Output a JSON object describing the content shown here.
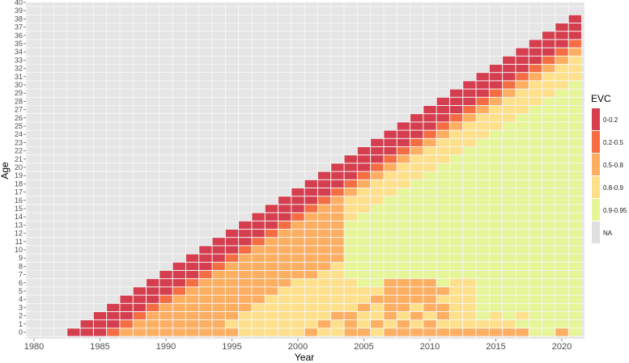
{
  "chart_data": {
    "type": "heatmap",
    "title": "",
    "xlabel": "Year",
    "ylabel": "Age",
    "x_range": [
      1980,
      2021
    ],
    "y_range": [
      0,
      40
    ],
    "x_ticks": [
      1980,
      1985,
      1990,
      1995,
      2000,
      2005,
      2010,
      2015,
      2020
    ],
    "y_ticks": [
      0,
      1,
      2,
      3,
      4,
      5,
      6,
      7,
      8,
      9,
      10,
      11,
      12,
      13,
      14,
      15,
      16,
      17,
      18,
      19,
      20,
      21,
      22,
      23,
      24,
      25,
      26,
      27,
      28,
      29,
      30,
      31,
      32,
      33,
      34,
      35,
      36,
      37,
      38,
      39,
      40
    ],
    "grid": true,
    "background_color": "#e5e5e5",
    "categories": [
      "0-0.2",
      "0.2-0.5",
      "0.5-0.8",
      "0.8-0.9",
      "0.9-0.95",
      "NA"
    ],
    "colors": [
      "#d53e4f",
      "#f46d43",
      "#fdae61",
      "#fee08b",
      "#e6f598",
      "#e0e0e0"
    ],
    "cell_rule": "value[year][age] exists for 1983 <= year <= 2021 and age <= year - 1983; category index = row value of the age band below",
    "cells_by_year": {
      "1983": [
        0
      ],
      "1984": [
        0,
        0
      ],
      "1985": [
        0,
        0,
        0
      ],
      "1986": [
        1,
        0,
        0,
        0
      ],
      "1987": [
        2,
        1,
        0,
        0,
        0
      ],
      "1988": [
        2,
        2,
        1,
        0,
        0,
        0
      ],
      "1989": [
        2,
        2,
        2,
        1,
        0,
        0,
        0
      ],
      "1990": [
        2,
        2,
        2,
        2,
        1,
        0,
        0,
        0
      ],
      "1991": [
        2,
        2,
        2,
        2,
        2,
        1,
        0,
        0,
        0
      ],
      "1992": [
        2,
        2,
        2,
        2,
        2,
        2,
        1,
        0,
        0,
        0
      ],
      "1993": [
        2,
        2,
        2,
        2,
        2,
        2,
        2,
        1,
        0,
        0,
        0
      ],
      "1994": [
        2,
        2,
        2,
        2,
        2,
        2,
        2,
        2,
        1,
        0,
        0,
        0
      ],
      "1995": [
        2,
        3,
        2,
        2,
        2,
        2,
        2,
        2,
        2,
        1,
        0,
        0,
        0
      ],
      "1996": [
        3,
        3,
        3,
        2,
        2,
        2,
        2,
        2,
        2,
        2,
        1,
        0,
        0,
        0
      ],
      "1997": [
        3,
        3,
        3,
        3,
        2,
        2,
        2,
        2,
        2,
        2,
        2,
        1,
        0,
        0,
        0
      ],
      "1998": [
        3,
        3,
        3,
        3,
        3,
        2,
        2,
        2,
        2,
        2,
        2,
        2,
        1,
        0,
        0,
        0
      ],
      "1999": [
        3,
        3,
        3,
        3,
        3,
        3,
        2,
        2,
        2,
        2,
        2,
        2,
        2,
        1,
        0,
        0,
        0
      ],
      "2000": [
        3,
        3,
        3,
        3,
        3,
        3,
        3,
        2,
        2,
        2,
        2,
        2,
        2,
        2,
        1,
        0,
        0,
        0
      ],
      "2001": [
        2,
        3,
        3,
        3,
        3,
        3,
        3,
        2,
        2,
        2,
        2,
        2,
        2,
        2,
        2,
        1,
        0,
        0,
        0
      ],
      "2002": [
        3,
        2,
        3,
        3,
        3,
        3,
        3,
        3,
        2,
        2,
        2,
        2,
        2,
        2,
        2,
        2,
        1,
        0,
        0,
        0
      ],
      "2003": [
        3,
        3,
        2,
        3,
        3,
        3,
        3,
        3,
        3,
        2,
        2,
        2,
        2,
        2,
        2,
        2,
        2,
        1,
        0,
        0,
        0
      ],
      "2004": [
        2,
        2,
        2,
        3,
        3,
        3,
        3,
        4,
        4,
        4,
        4,
        4,
        4,
        4,
        3,
        3,
        3,
        2,
        1,
        0,
        0,
        0
      ],
      "2005": [
        2,
        3,
        3,
        2,
        3,
        3,
        4,
        4,
        4,
        4,
        4,
        4,
        4,
        4,
        4,
        3,
        3,
        3,
        2,
        1,
        0,
        0,
        0
      ],
      "2006": [
        3,
        2,
        3,
        3,
        2,
        3,
        4,
        4,
        4,
        4,
        4,
        4,
        4,
        4,
        4,
        4,
        3,
        3,
        3,
        2,
        1,
        0,
        0,
        0
      ],
      "2007": [
        2,
        3,
        2,
        2,
        2,
        2,
        2,
        4,
        4,
        4,
        4,
        4,
        4,
        4,
        4,
        4,
        4,
        3,
        3,
        3,
        2,
        1,
        0,
        0,
        0
      ],
      "2008": [
        2,
        2,
        3,
        2,
        2,
        2,
        2,
        4,
        4,
        4,
        4,
        4,
        4,
        4,
        4,
        4,
        4,
        4,
        3,
        3,
        3,
        2,
        1,
        0,
        0,
        0
      ],
      "2009": [
        2,
        3,
        2,
        3,
        2,
        2,
        2,
        4,
        4,
        4,
        4,
        4,
        4,
        4,
        4,
        4,
        4,
        4,
        4,
        3,
        3,
        3,
        2,
        1,
        0,
        0,
        0
      ],
      "2010": [
        2,
        2,
        3,
        2,
        2,
        2,
        2,
        4,
        4,
        4,
        4,
        4,
        4,
        4,
        4,
        4,
        4,
        4,
        4,
        4,
        3,
        3,
        3,
        2,
        1,
        0,
        0,
        0
      ],
      "2011": [
        2,
        3,
        2,
        2,
        3,
        2,
        4,
        4,
        4,
        4,
        4,
        4,
        4,
        4,
        4,
        4,
        4,
        4,
        4,
        4,
        4,
        3,
        3,
        3,
        2,
        1,
        0,
        0,
        0
      ],
      "2012": [
        2,
        3,
        3,
        3,
        3,
        3,
        3,
        4,
        4,
        4,
        4,
        4,
        4,
        4,
        4,
        4,
        4,
        4,
        4,
        4,
        4,
        4,
        3,
        3,
        3,
        2,
        1,
        0,
        0,
        0
      ],
      "2013": [
        2,
        3,
        3,
        3,
        3,
        3,
        3,
        4,
        4,
        4,
        4,
        4,
        4,
        4,
        4,
        4,
        4,
        4,
        4,
        4,
        4,
        4,
        4,
        3,
        3,
        3,
        2,
        1,
        0,
        0,
        0
      ],
      "2014": [
        2,
        3,
        4,
        4,
        4,
        4,
        4,
        4,
        4,
        4,
        4,
        4,
        4,
        4,
        4,
        4,
        4,
        4,
        4,
        4,
        4,
        4,
        4,
        4,
        3,
        3,
        3,
        2,
        1,
        0,
        0,
        0
      ],
      "2015": [
        2,
        3,
        3,
        4,
        4,
        4,
        4,
        4,
        4,
        4,
        4,
        4,
        4,
        4,
        4,
        4,
        4,
        4,
        4,
        4,
        4,
        4,
        4,
        4,
        4,
        3,
        3,
        3,
        2,
        1,
        0,
        0,
        0
      ],
      "2016": [
        2,
        3,
        4,
        4,
        4,
        4,
        4,
        4,
        4,
        4,
        4,
        4,
        4,
        4,
        4,
        4,
        4,
        4,
        4,
        4,
        4,
        4,
        4,
        4,
        4,
        4,
        3,
        3,
        3,
        2,
        1,
        0,
        0,
        0
      ],
      "2017": [
        2,
        4,
        3,
        4,
        4,
        4,
        4,
        4,
        4,
        4,
        4,
        4,
        4,
        4,
        4,
        4,
        4,
        4,
        4,
        4,
        4,
        4,
        4,
        4,
        4,
        4,
        4,
        3,
        3,
        3,
        2,
        1,
        0,
        0,
        0
      ],
      "2018": [
        4,
        4,
        4,
        4,
        4,
        4,
        4,
        4,
        4,
        4,
        4,
        4,
        4,
        4,
        4,
        4,
        4,
        4,
        4,
        4,
        4,
        4,
        4,
        4,
        4,
        4,
        4,
        4,
        3,
        3,
        3,
        2,
        1,
        0,
        0,
        0
      ],
      "2019": [
        4,
        4,
        4,
        4,
        4,
        4,
        4,
        4,
        4,
        4,
        4,
        4,
        4,
        4,
        4,
        4,
        4,
        4,
        4,
        4,
        4,
        4,
        4,
        4,
        4,
        4,
        4,
        4,
        4,
        3,
        3,
        3,
        2,
        1,
        0,
        0,
        0
      ],
      "2020": [
        2,
        4,
        4,
        4,
        4,
        4,
        4,
        4,
        4,
        4,
        4,
        4,
        4,
        4,
        4,
        4,
        4,
        4,
        4,
        4,
        4,
        4,
        4,
        4,
        4,
        4,
        4,
        4,
        4,
        4,
        3,
        3,
        3,
        2,
        1,
        0,
        0,
        0
      ],
      "2021": [
        4,
        4,
        4,
        4,
        4,
        4,
        4,
        4,
        4,
        4,
        4,
        4,
        4,
        4,
        4,
        4,
        4,
        4,
        4,
        4,
        4,
        4,
        4,
        4,
        4,
        4,
        4,
        4,
        4,
        4,
        4,
        3,
        3,
        3,
        2,
        1,
        0,
        0,
        0
      ]
    },
    "legend": {
      "title": "EVC",
      "placement": "right",
      "items": [
        "0-0.2",
        "0.2-0.5",
        "0.5-0.8",
        "0.8-0.9",
        "0.9-0.95",
        "NA"
      ]
    }
  }
}
